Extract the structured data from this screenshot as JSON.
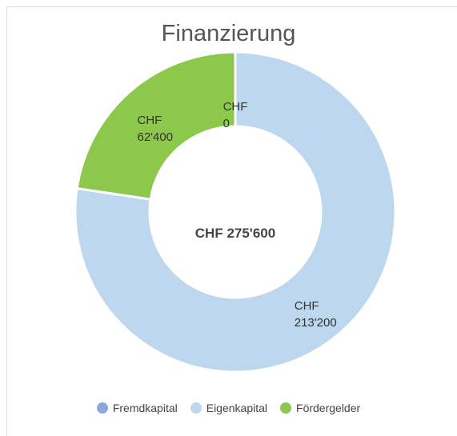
{
  "chart_data": {
    "type": "donut",
    "title": "Finanzierung",
    "center_label": "CHF 275'600",
    "categories": [
      "Fremdkapital",
      "Eigenkapital",
      "Fördergelder"
    ],
    "values": [
      0,
      213200,
      62400
    ],
    "value_labels": [
      "CHF 0",
      "CHF 213'200",
      "CHF 62'400"
    ],
    "colors": [
      "#8fa8dc",
      "#bdd7ee",
      "#8cc84b"
    ],
    "legend": "bottom"
  }
}
